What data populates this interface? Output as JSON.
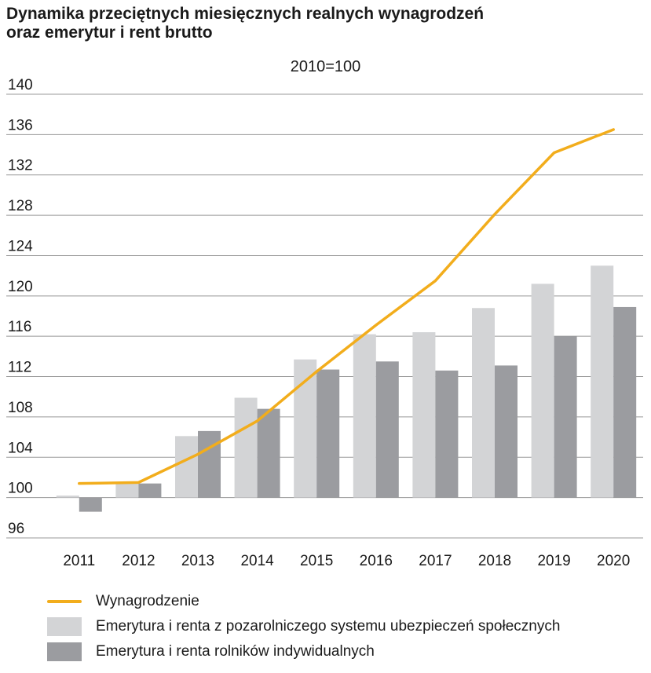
{
  "title_lines": [
    "Dynamika przeciętnych miesięcznych realnych wynagrodzeń",
    "oraz emerytur i rent brutto"
  ],
  "subtitle": "2010=100",
  "colors": {
    "wage_line": "#f2ad1c",
    "pension_light": "#d3d4d6",
    "pension_dark": "#9b9ca0",
    "grid": "#999999"
  },
  "legend": [
    {
      "label": "Wynagrodzenie",
      "swatch": "line",
      "color": "#f2ad1c"
    },
    {
      "label": "Emerytura i renta z pozarolniczego systemu ubezpieczeń społecznych",
      "swatch": "box",
      "color": "#d3d4d6"
    },
    {
      "label": "Emerytura i renta rolników indywidualnych",
      "swatch": "box",
      "color": "#9b9ca0"
    }
  ],
  "chart_data": {
    "type": "bar",
    "title": "Dynamika przeciętnych miesięcznych realnych wynagrodzeń oraz emerytur i rent brutto",
    "subtitle": "2010=100",
    "categories": [
      "2011",
      "2012",
      "2013",
      "2014",
      "2015",
      "2016",
      "2017",
      "2018",
      "2019",
      "2020"
    ],
    "ylim": [
      96,
      140
    ],
    "yticks": [
      96,
      100,
      104,
      108,
      112,
      116,
      120,
      124,
      128,
      132,
      136,
      140
    ],
    "baseline": 100,
    "grid": "horizontal",
    "legend_position": "bottom",
    "series": [
      {
        "name": "Emerytura i renta z pozarolniczego systemu ubezpieczeń społecznych",
        "kind": "bar",
        "values": [
          100.2,
          101.4,
          106.1,
          109.9,
          113.7,
          116.2,
          116.4,
          118.8,
          121.2,
          123.0
        ]
      },
      {
        "name": "Emerytura i renta rolników indywidualnych",
        "kind": "bar",
        "values": [
          98.6,
          101.4,
          106.6,
          108.8,
          112.7,
          113.5,
          112.6,
          113.1,
          116.0,
          118.9
        ]
      },
      {
        "name": "Wynagrodzenie",
        "kind": "line",
        "values": [
          101.4,
          101.5,
          104.3,
          107.6,
          112.5,
          117.1,
          121.5,
          128.1,
          134.2,
          136.5
        ]
      }
    ]
  }
}
